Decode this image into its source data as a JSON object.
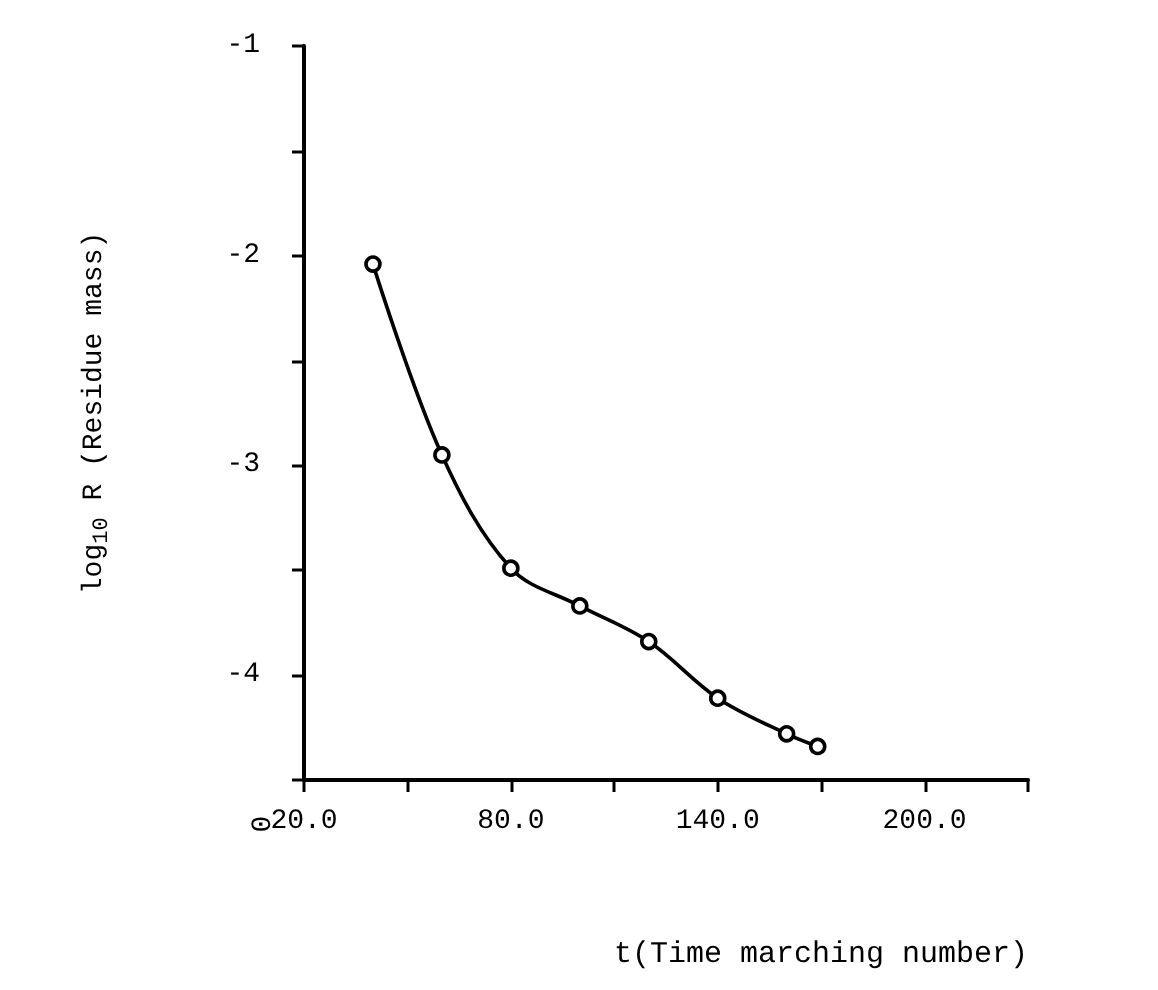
{
  "chart_data": {
    "type": "line",
    "xlabel": "t(Time marching number)",
    "ylabel": "log$_{10}$ R (Residue mass)",
    "x": [
      40,
      60,
      80,
      100,
      120,
      140,
      160,
      169
    ],
    "series": [
      {
        "color": "#000000",
        "values": [
          -2.04,
          -2.95,
          -3.49,
          -3.67,
          -3.84,
          -4.11,
          -4.28,
          -4.34
        ]
      }
    ],
    "xlim": [
      20,
      230
    ],
    "xticks": [
      {
        "value": 20,
        "label": "20.0"
      },
      {
        "value": 50,
        "label": null
      },
      {
        "value": 80,
        "label": "80.0"
      },
      {
        "value": 110,
        "label": null
      },
      {
        "value": 140,
        "label": "140.0"
      },
      {
        "value": 170,
        "label": null
      },
      {
        "value": 200,
        "label": "200.0"
      },
      {
        "value": 230,
        "label": null
      }
    ],
    "ylim": [
      -4.5,
      -1
    ],
    "annotations": [
      "0"
    ],
    "yticks": [
      {
        "value": -4.5,
        "label": null
      },
      {
        "value": -4,
        "label": "-4"
      },
      {
        "value": -3.5,
        "label": null
      },
      {
        "value": -3,
        "label": "-3"
      },
      {
        "value": -2.5,
        "label": null
      },
      {
        "value": -2,
        "label": "-2"
      },
      {
        "value": -1.5,
        "label": null
      },
      {
        "value": -1,
        "label": "-1"
      }
    ],
    "grid": false,
    "marker": "circle",
    "line_style": "solid"
  }
}
